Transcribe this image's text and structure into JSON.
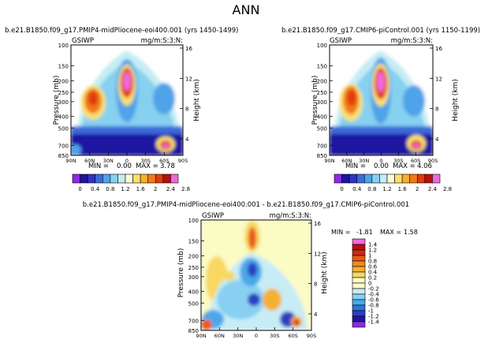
{
  "page_title": "ANN",
  "chart_data": [
    {
      "type": "heatmap",
      "title": "b.e21.B1850.f09_g17.PMIP4-midPliocene-eoi400.001 (yrs 1450-1499)",
      "left_label": "GSIWP",
      "right_label": "mg/m:S:3:N:",
      "ylabel": "Pressure (mb)",
      "ylabel_right": "Height (km)",
      "x_ticks": [
        "90N",
        "60N",
        "30N",
        "0",
        "30S",
        "60S",
        "90S"
      ],
      "y_ticks": [
        "100",
        "150",
        "200",
        "250",
        "300",
        "400",
        "500",
        "700",
        "850"
      ],
      "height_ticks": [
        "16",
        "12",
        "8",
        "4"
      ],
      "min_label": "MIN = ",
      "min_value": "0.00",
      "max_label": "MAX = ",
      "max_value": "3.78",
      "levels": [
        "0",
        "0.4",
        "0.8",
        "1.2",
        "1.6",
        "2",
        "2.4",
        "2.8"
      ],
      "colors": [
        "#8b2be2",
        "#1f14a0",
        "#2f34c8",
        "#3b6bd8",
        "#4fa3e8",
        "#86d0f0",
        "#c4ecf4",
        "#fbfbd4",
        "#f8e070",
        "#f7b02a",
        "#f07a18",
        "#e03c10",
        "#b80f0f",
        "#f06ad8"
      ]
    },
    {
      "type": "heatmap",
      "title": "b.e21.B1850.f09_g17.CMIP6-piControl.001 (yrs 1150-1199)",
      "left_label": "GSIWP",
      "right_label": "mg/m:S:3:N:",
      "ylabel": "Pressure (mb)",
      "ylabel_right": "Height (km)",
      "x_ticks": [
        "90N",
        "60N",
        "30N",
        "0",
        "30S",
        "60S",
        "90S"
      ],
      "y_ticks": [
        "100",
        "150",
        "200",
        "250",
        "300",
        "400",
        "500",
        "700",
        "850"
      ],
      "height_ticks": [
        "16",
        "12",
        "8",
        "4"
      ],
      "min_label": "MIN = ",
      "min_value": "0.00",
      "max_label": "MAX = ",
      "max_value": "4.06",
      "levels": [
        "0",
        "0.4",
        "0.8",
        "1.2",
        "1.6",
        "2",
        "2.4",
        "2.8"
      ],
      "colors": [
        "#8b2be2",
        "#1f14a0",
        "#2f34c8",
        "#3b6bd8",
        "#4fa3e8",
        "#86d0f0",
        "#c4ecf4",
        "#fbfbd4",
        "#f8e070",
        "#f7b02a",
        "#f07a18",
        "#e03c10",
        "#b80f0f",
        "#f06ad8"
      ]
    },
    {
      "type": "heatmap",
      "title": "b.e21.B1850.f09_g17.PMIP4-midPliocene-eoi400.001  -  b.e21.B1850.f09_g17.CMIP6-piControl.001",
      "left_label": "GSIWP",
      "right_label": "mg/m:S:3:N:",
      "ylabel": "Pressure (mb)",
      "ylabel_right": "Height (km)",
      "x_ticks": [
        "90N",
        "60N",
        "30N",
        "0",
        "30S",
        "60S",
        "90S"
      ],
      "y_ticks": [
        "100",
        "150",
        "200",
        "250",
        "300",
        "400",
        "500",
        "700",
        "850"
      ],
      "height_ticks": [
        "16",
        "12",
        "8",
        "4"
      ],
      "min_label": "MIN = ",
      "min_value": "-1.81",
      "max_label": "MAX = ",
      "max_value": "1.58",
      "levels": [
        "1.4",
        "1.2",
        "1",
        "0.8",
        "0.6",
        "0.4",
        "0.2",
        "0",
        "-0.2",
        "-0.4",
        "-0.6",
        "-0.8",
        "-1",
        "-1.2",
        "-1.4"
      ],
      "colors": [
        "#f06ad8",
        "#b80f0f",
        "#d02a12",
        "#e85a15",
        "#f08a20",
        "#f5b030",
        "#f8d860",
        "#fbfbc4",
        "#fbfbc4",
        "#c8ecf6",
        "#88d0f2",
        "#48a8ea",
        "#2a78d8",
        "#2a40c0",
        "#1f14a0",
        "#8b2be2"
      ]
    }
  ]
}
